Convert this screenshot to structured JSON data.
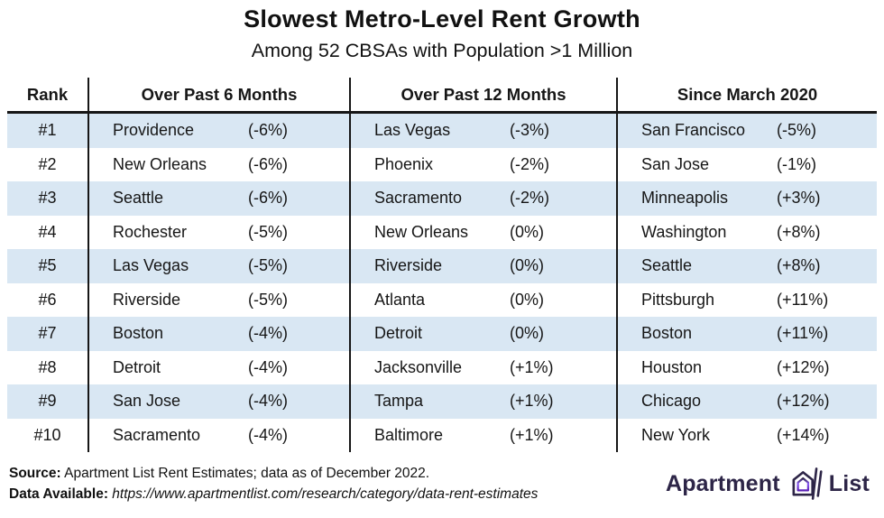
{
  "title": "Slowest Metro-Level Rent Growth",
  "subtitle": "Among 52 CBSAs with Population >1 Million",
  "chart_data": {
    "type": "table",
    "title": "Slowest Metro-Level Rent Growth",
    "subtitle": "Among 52 CBSAs with Population >1 Million",
    "columns": [
      "Rank",
      "Over Past 6 Months",
      "Over Past 12 Months",
      "Since March 2020"
    ],
    "rows": [
      {
        "rank": "#1",
        "past6": {
          "city": "Providence",
          "pct": "(-6%)"
        },
        "past12": {
          "city": "Las Vegas",
          "pct": "(-3%)"
        },
        "since2020": {
          "city": "San Francisco",
          "pct": "(-5%)"
        }
      },
      {
        "rank": "#2",
        "past6": {
          "city": "New Orleans",
          "pct": "(-6%)"
        },
        "past12": {
          "city": "Phoenix",
          "pct": "(-2%)"
        },
        "since2020": {
          "city": "San Jose",
          "pct": "(-1%)"
        }
      },
      {
        "rank": "#3",
        "past6": {
          "city": "Seattle",
          "pct": "(-6%)"
        },
        "past12": {
          "city": "Sacramento",
          "pct": "(-2%)"
        },
        "since2020": {
          "city": "Minneapolis",
          "pct": "(+3%)"
        }
      },
      {
        "rank": "#4",
        "past6": {
          "city": "Rochester",
          "pct": "(-5%)"
        },
        "past12": {
          "city": "New Orleans",
          "pct": "(0%)"
        },
        "since2020": {
          "city": "Washington",
          "pct": "(+8%)"
        }
      },
      {
        "rank": "#5",
        "past6": {
          "city": "Las Vegas",
          "pct": "(-5%)"
        },
        "past12": {
          "city": "Riverside",
          "pct": "(0%)"
        },
        "since2020": {
          "city": "Seattle",
          "pct": "(+8%)"
        }
      },
      {
        "rank": "#6",
        "past6": {
          "city": "Riverside",
          "pct": "(-5%)"
        },
        "past12": {
          "city": "Atlanta",
          "pct": "(0%)"
        },
        "since2020": {
          "city": "Pittsburgh",
          "pct": "(+11%)"
        }
      },
      {
        "rank": "#7",
        "past6": {
          "city": "Boston",
          "pct": "(-4%)"
        },
        "past12": {
          "city": "Detroit",
          "pct": "(0%)"
        },
        "since2020": {
          "city": "Boston",
          "pct": "(+11%)"
        }
      },
      {
        "rank": "#8",
        "past6": {
          "city": "Detroit",
          "pct": "(-4%)"
        },
        "past12": {
          "city": "Jacksonville",
          "pct": "(+1%)"
        },
        "since2020": {
          "city": "Houston",
          "pct": "(+12%)"
        }
      },
      {
        "rank": "#9",
        "past6": {
          "city": "San Jose",
          "pct": "(-4%)"
        },
        "past12": {
          "city": "Tampa",
          "pct": "(+1%)"
        },
        "since2020": {
          "city": "Chicago",
          "pct": "(+12%)"
        }
      },
      {
        "rank": "#10",
        "past6": {
          "city": "Sacramento",
          "pct": "(-4%)"
        },
        "past12": {
          "city": "Baltimore",
          "pct": "(+1%)"
        },
        "since2020": {
          "city": "New York",
          "pct": "(+14%)"
        }
      }
    ]
  },
  "footer": {
    "source_label": "Source:",
    "source_text": " Apartment List Rent Estimates; data as of December 2022.",
    "data_label": "Data Available:",
    "data_url": " https://www.apartmentlist.com/research/category/data-rent-estimates"
  },
  "logo": {
    "word1": "Apartment",
    "word2": "List"
  },
  "colors": {
    "row_alt": "#d9e7f3",
    "line": "#161616",
    "text": "#111111",
    "logo": "#2d2547",
    "accent_purple": "#8b5cf6",
    "accent_purple_dark": "#5b21b6"
  }
}
